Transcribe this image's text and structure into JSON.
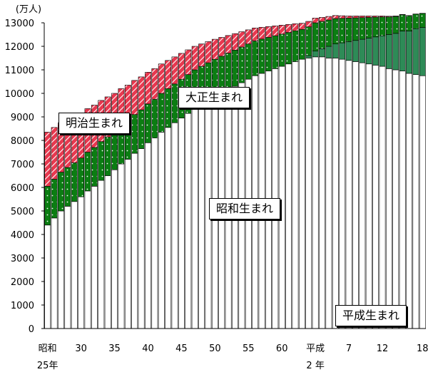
{
  "chart_data": {
    "type": "bar",
    "stacked": true,
    "title": "",
    "y_unit_label": "(万人)",
    "ylim": [
      0,
      13000
    ],
    "y_ticks": [
      0,
      1000,
      2000,
      3000,
      4000,
      5000,
      6000,
      7000,
      8000,
      9000,
      10000,
      11000,
      12000,
      13000
    ],
    "x_tick_labels": [
      {
        "year": 1950,
        "line1": "昭和",
        "line2": "25年"
      },
      {
        "year": 1955,
        "line1": "30",
        "line2": ""
      },
      {
        "year": 1960,
        "line1": "35",
        "line2": ""
      },
      {
        "year": 1965,
        "line1": "40",
        "line2": ""
      },
      {
        "year": 1970,
        "line1": "45",
        "line2": ""
      },
      {
        "year": 1975,
        "line1": "50",
        "line2": ""
      },
      {
        "year": 1980,
        "line1": "55",
        "line2": ""
      },
      {
        "year": 1985,
        "line1": "60",
        "line2": ""
      },
      {
        "year": 1990,
        "line1": "平成",
        "line2": "2 年"
      },
      {
        "year": 1995,
        "line1": "7",
        "line2": ""
      },
      {
        "year": 2000,
        "line1": "12",
        "line2": ""
      },
      {
        "year": 2006,
        "line1": "18",
        "line2": ""
      }
    ],
    "categories": [
      1950,
      1951,
      1952,
      1953,
      1954,
      1955,
      1956,
      1957,
      1958,
      1959,
      1960,
      1961,
      1962,
      1963,
      1964,
      1965,
      1966,
      1967,
      1968,
      1969,
      1970,
      1971,
      1972,
      1973,
      1974,
      1975,
      1976,
      1977,
      1978,
      1979,
      1980,
      1981,
      1982,
      1983,
      1984,
      1985,
      1986,
      1987,
      1988,
      1989,
      1990,
      1991,
      1992,
      1993,
      1994,
      1995,
      1996,
      1997,
      1998,
      1999,
      2000,
      2001,
      2002,
      2003,
      2004,
      2005,
      2006
    ],
    "series": [
      {
        "name": "昭和生まれ",
        "color": "#ffffff",
        "pattern": "plain",
        "values": [
          4400,
          4700,
          5000,
          5200,
          5400,
          5600,
          5850,
          6050,
          6300,
          6500,
          6750,
          7000,
          7200,
          7450,
          7650,
          7900,
          8100,
          8350,
          8550,
          8750,
          8950,
          9150,
          9350,
          9550,
          9700,
          9850,
          10000,
          10150,
          10300,
          10450,
          10600,
          10750,
          10850,
          10950,
          11050,
          11150,
          11250,
          11350,
          11450,
          11500,
          11550,
          11550,
          11500,
          11500,
          11450,
          11400,
          11350,
          11300,
          11250,
          11200,
          11150,
          11050,
          11000,
          10950,
          10850,
          10800,
          10750
        ]
      },
      {
        "name": "平成生まれ",
        "color": "#2e8b57",
        "pattern": "solid",
        "values": [
          0,
          0,
          0,
          0,
          0,
          0,
          0,
          0,
          0,
          0,
          0,
          0,
          0,
          0,
          0,
          0,
          0,
          0,
          0,
          0,
          0,
          0,
          0,
          0,
          0,
          0,
          0,
          0,
          0,
          0,
          0,
          0,
          0,
          0,
          0,
          0,
          0,
          0,
          0,
          100,
          250,
          350,
          500,
          600,
          700,
          800,
          900,
          1000,
          1100,
          1200,
          1300,
          1450,
          1550,
          1700,
          1800,
          1950,
          2050
        ]
      },
      {
        "name": "大正生まれ",
        "color": "#0b7d12",
        "pattern": "dotted",
        "values": [
          1650,
          1650,
          1650,
          1650,
          1650,
          1650,
          1650,
          1650,
          1650,
          1650,
          1650,
          1650,
          1650,
          1650,
          1650,
          1650,
          1650,
          1650,
          1650,
          1650,
          1650,
          1650,
          1650,
          1600,
          1600,
          1600,
          1580,
          1560,
          1540,
          1520,
          1500,
          1480,
          1460,
          1430,
          1400,
          1370,
          1340,
          1310,
          1270,
          1230,
          1200,
          1160,
          1120,
          1080,
          1040,
          1000,
          960,
          920,
          880,
          840,
          800,
          750,
          720,
          690,
          650,
          620,
          600
        ]
      },
      {
        "name": "明治生まれ",
        "color": "#e8384f",
        "pattern": "hatched",
        "values": [
          2300,
          2200,
          2100,
          2000,
          1950,
          1900,
          1850,
          1800,
          1750,
          1700,
          1600,
          1550,
          1500,
          1450,
          1400,
          1350,
          1300,
          1250,
          1200,
          1150,
          1100,
          1050,
          1000,
          950,
          900,
          850,
          800,
          750,
          700,
          650,
          600,
          550,
          500,
          460,
          420,
          380,
          340,
          300,
          260,
          230,
          200,
          170,
          150,
          130,
          110,
          90,
          80,
          70,
          60,
          50,
          40,
          30,
          20,
          15,
          10,
          5,
          5
        ]
      }
    ],
    "annotations": [
      {
        "text": "明治生まれ",
        "series": "明治生まれ"
      },
      {
        "text": "大正生まれ",
        "series": "大正生まれ"
      },
      {
        "text": "昭和生まれ",
        "series": "昭和生まれ"
      },
      {
        "text": "平成生まれ",
        "series": "平成生まれ"
      }
    ],
    "grid": false,
    "legend": "none"
  }
}
